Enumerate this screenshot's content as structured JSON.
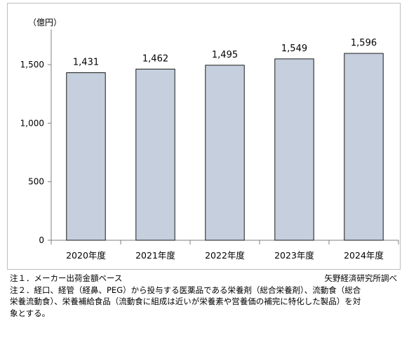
{
  "chart_data": {
    "type": "bar",
    "unit_label": "（億円）",
    "categories": [
      "2020年度",
      "2021年度",
      "2022年度",
      "2023年度",
      "2024年度"
    ],
    "values": [
      1431,
      1462,
      1495,
      1549,
      1596
    ],
    "value_labels": [
      "1,431",
      "1,462",
      "1,495",
      "1,549",
      "1,596"
    ],
    "yticks": [
      0,
      500,
      1000,
      1500
    ],
    "ytick_labels": [
      "0",
      "500",
      "1,000",
      "1,500"
    ],
    "ylim": [
      0,
      1800
    ],
    "bar_color": "#c5cfde",
    "bar_border_color": "#1a1a1a",
    "grid": false
  },
  "notes": {
    "note1": "注１．メーカー出荷金額ベース",
    "source": "矢野経済研究所調べ",
    "note2_line1": "注２．経口、経管（経鼻、PEG）から投与する医薬品である栄養剤（総合栄養剤）、流動食（総合",
    "note2_line2": "栄養流動食）、栄養補給食品（流動食に組成は近いが栄養素や営養価の補完に特化した製品）を対",
    "note2_line3": "象とする。"
  }
}
